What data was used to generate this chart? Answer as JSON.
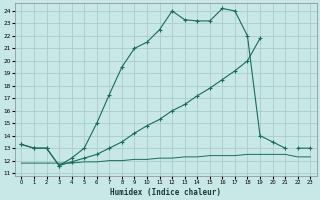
{
  "xlabel": "Humidex (Indice chaleur)",
  "bg_color": "#c8e8e8",
  "grid_color": "#aacccc",
  "line_color": "#1a6b5a",
  "xlim": [
    -0.5,
    23.5
  ],
  "ylim": [
    10.8,
    24.6
  ],
  "yticks": [
    11,
    12,
    13,
    14,
    15,
    16,
    17,
    18,
    19,
    20,
    21,
    22,
    23,
    24
  ],
  "xticks": [
    0,
    1,
    2,
    3,
    4,
    5,
    6,
    7,
    8,
    9,
    10,
    11,
    12,
    13,
    14,
    15,
    16,
    17,
    18,
    19,
    20,
    21,
    22,
    23
  ],
  "curve_a_x": [
    0,
    1,
    2,
    3,
    4,
    5,
    6,
    7,
    8,
    9,
    10,
    11,
    12,
    13,
    14,
    15,
    16,
    17,
    18,
    19,
    20,
    21,
    22,
    23
  ],
  "curve_a_y": [
    13.3,
    13.0,
    13.0,
    11.6,
    12.2,
    13.0,
    15.0,
    17.3,
    19.5,
    21.0,
    21.5,
    22.5,
    24.0,
    23.3,
    23.2,
    23.2,
    24.2,
    24.0,
    22.0,
    14.0,
    13.5,
    13.0,
    null,
    null
  ],
  "curve_b_x": [
    0,
    1,
    2,
    3,
    4,
    5,
    6,
    7,
    8,
    9,
    10,
    11,
    12,
    13,
    14,
    15,
    16,
    17,
    18,
    19,
    20,
    21,
    22,
    23
  ],
  "curve_b_y": [
    13.3,
    13.0,
    13.0,
    11.6,
    11.9,
    12.2,
    12.5,
    13.0,
    13.5,
    14.2,
    14.8,
    15.3,
    16.0,
    16.5,
    17.2,
    17.8,
    18.5,
    19.2,
    20.0,
    21.8,
    null,
    null,
    13.0,
    13.0
  ],
  "curve_c_x": [
    0,
    1,
    2,
    3,
    4,
    5,
    6,
    7,
    8,
    9,
    10,
    11,
    12,
    13,
    14,
    15,
    16,
    17,
    18,
    19,
    20,
    21,
    22,
    23
  ],
  "curve_c_y": [
    11.8,
    11.8,
    11.8,
    11.8,
    11.8,
    11.9,
    11.9,
    12.0,
    12.0,
    12.1,
    12.1,
    12.2,
    12.2,
    12.3,
    12.3,
    12.4,
    12.4,
    12.4,
    12.5,
    12.5,
    12.5,
    12.5,
    12.3,
    12.3
  ]
}
